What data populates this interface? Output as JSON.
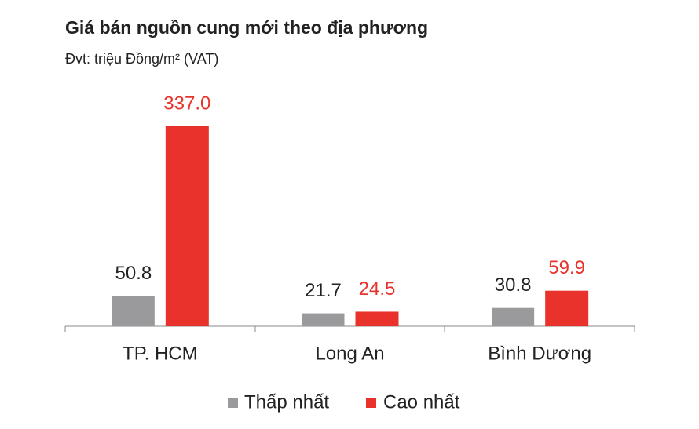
{
  "chart_data": {
    "type": "bar",
    "title": "Giá bán nguồn cung mới theo địa phương",
    "subtitle": "Đvt: triệu Đồng/m² (VAT)",
    "categories": [
      "TP. HCM",
      "Long An",
      "Bình Dương"
    ],
    "series": [
      {
        "name": "Thấp nhất",
        "color": "#9a9a9c",
        "values": [
          50.8,
          21.7,
          30.8
        ],
        "value_labels": [
          "50.8",
          "21.7",
          "30.8"
        ]
      },
      {
        "name": "Cao nhất",
        "color": "#e8322b",
        "values": [
          337,
          24.5,
          59.9
        ],
        "value_labels": [
          "337.0",
          "24.5",
          "59.9"
        ]
      }
    ]
  }
}
